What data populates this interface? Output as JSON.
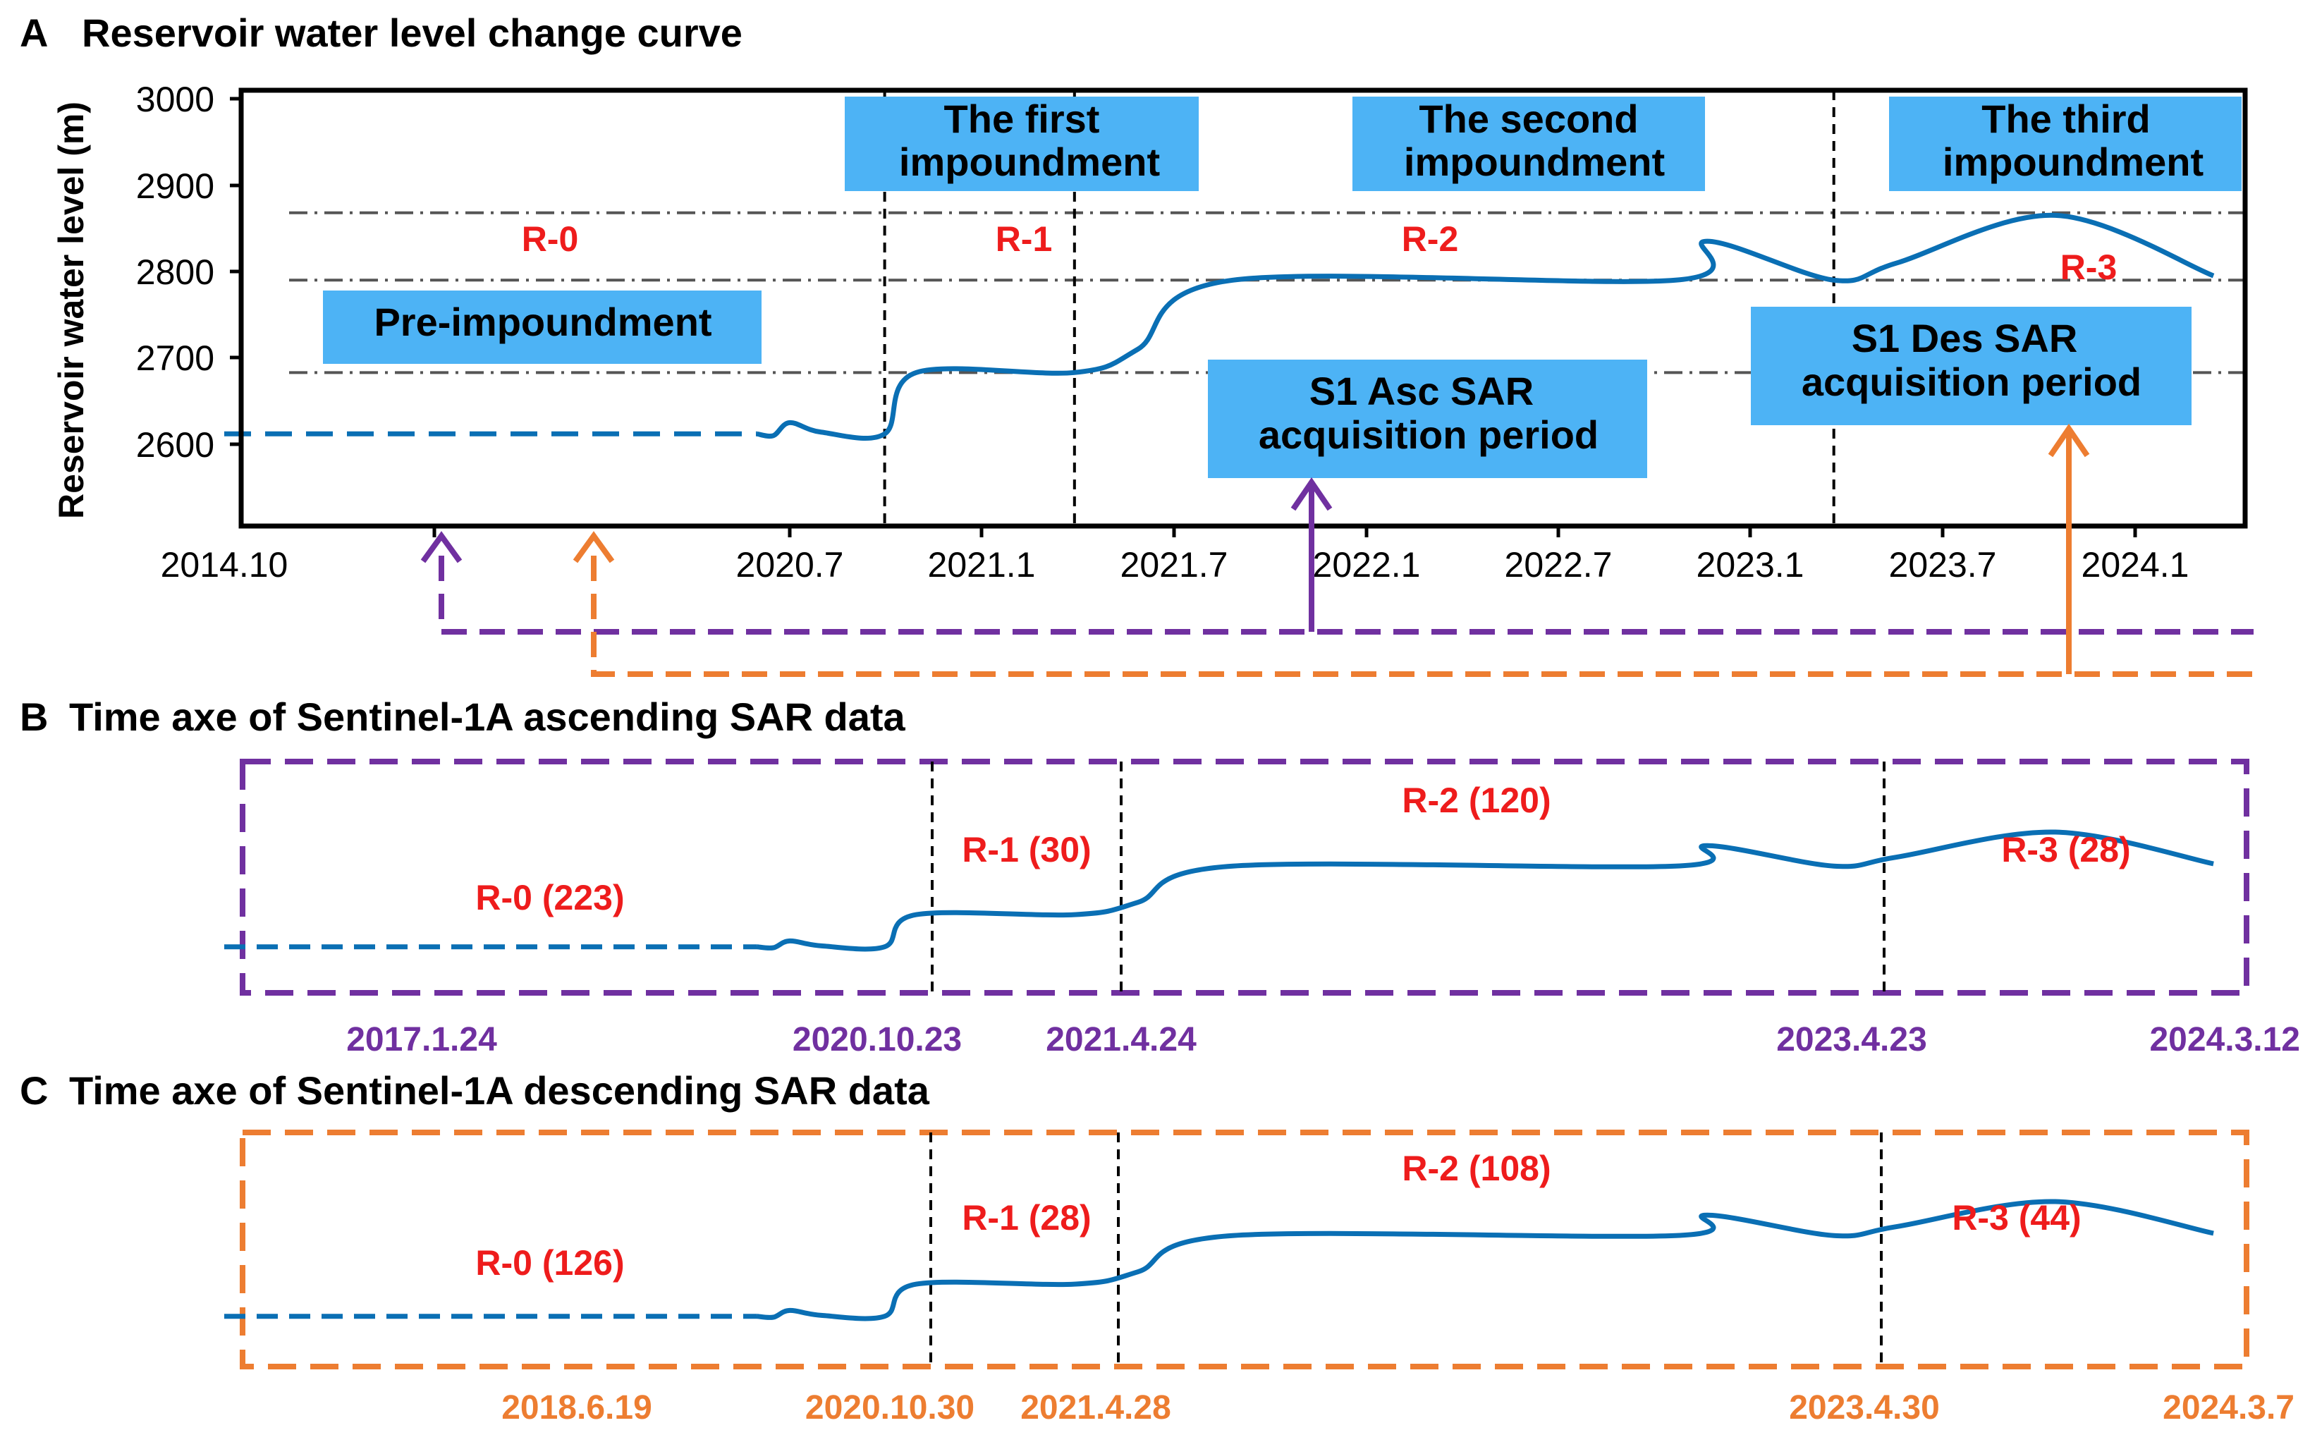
{
  "chart_data": [
    {
      "panel": "A",
      "type": "line",
      "title_letter": "A",
      "title": "Reservoir water level change curve",
      "ylabel": "Reservoir water level (m)",
      "ylim": [
        2500,
        3000
      ],
      "yticks": [
        "3000",
        "2900",
        "2800",
        "2700",
        "2600"
      ],
      "xticks": [
        "2014.10",
        "2020.7",
        "2021.1",
        "2021.7",
        "2022.1",
        "2022.7",
        "2023.1",
        "2023.7",
        "2024.1"
      ],
      "reference_levels": [
        2868,
        2790,
        2683
      ],
      "dividers": [
        "2020.10",
        "2021.4",
        "2023.4"
      ],
      "phase_labels": [
        "R-0",
        "R-1",
        "R-2",
        "R-3"
      ],
      "boxes": {
        "first": [
          "The first",
          "impoundment"
        ],
        "second": [
          "The second",
          "impoundment"
        ],
        "third": [
          "The third",
          "impoundment"
        ],
        "pre": "Pre-impoundment",
        "asc": [
          "S1 Asc SAR",
          "acquisition period"
        ],
        "des": [
          "S1 Des SAR",
          "acquisition period"
        ]
      },
      "series": [
        {
          "name": "Reservoir water level",
          "segments": {
            "assumed_pre": "dashed line, 2014.10 to 2020.3",
            "observed": "solid line, 2020.3 to 2024.4"
          },
          "x": [
            "2014.10",
            "2020.3",
            "2020.5",
            "2020.7",
            "2020.8",
            "2020.10",
            "2020.11",
            "2021.4",
            "2021.6",
            "2021.9",
            "2022.11",
            "2022.12",
            "2023.4",
            "2023.6",
            "2023.11",
            "2024.4"
          ],
          "y": [
            2612,
            2612,
            2610,
            2625,
            2614,
            2612,
            2683,
            2683,
            2710,
            2790,
            2790,
            2835,
            2790,
            2810,
            2865,
            2795
          ]
        }
      ]
    },
    {
      "panel": "B",
      "type": "line",
      "title_letter": "B",
      "title": "Time axe of Sentinel-1A ascending SAR data",
      "color": "#7030a0",
      "dates": [
        "2017.1.24",
        "2020.10.23",
        "2021.4.24",
        "2023.4.23",
        "2024.3.12"
      ],
      "phase_counts": [
        "R-0 (223)",
        "R-1 (30)",
        "R-2 (120)",
        "R-3 (28)"
      ]
    },
    {
      "panel": "C",
      "type": "line",
      "title_letter": "C",
      "title": "Time axe of Sentinel-1A descending SAR data",
      "color": "#ed7d31",
      "dates": [
        "2018.6.19",
        "2020.10.30",
        "2021.4.28",
        "2023.4.30",
        "2024.3.7"
      ],
      "phase_counts": [
        "R-0 (126)",
        "R-1 (28)",
        "R-2 (108)",
        "R-3 (44)"
      ]
    }
  ],
  "colors": {
    "curve": "#0a6fb4",
    "box": "#4db3f5",
    "phase_label": "#ee1c1c",
    "asc": "#7030a0",
    "des": "#ed7d31",
    "ref_line": "#555555"
  }
}
